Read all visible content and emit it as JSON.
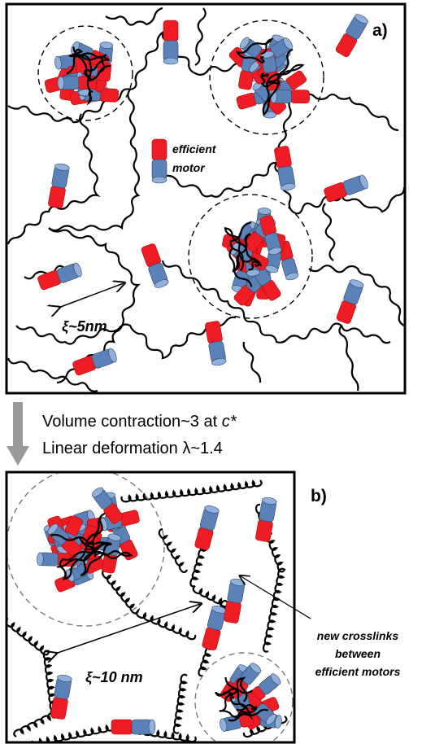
{
  "panel_a": {
    "label": "a)",
    "motor_note": [
      "efficient",
      "motor"
    ],
    "mesh_size": "ξ~5nm"
  },
  "caption": {
    "line1": [
      "Volume contraction~3 at",
      "c*"
    ],
    "line2": "Linear deformation λ~1.4"
  },
  "panel_b": {
    "label": "b)",
    "mesh_size": "ξ~10 nm",
    "annotation": [
      "new crosslinks",
      "between",
      "efficient motors"
    ]
  }
}
